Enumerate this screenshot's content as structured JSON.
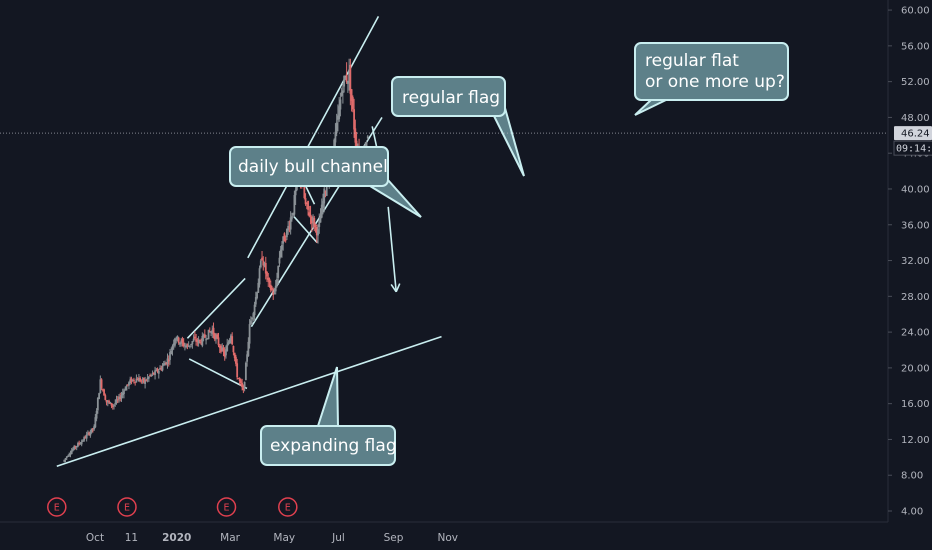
{
  "chart_data": {
    "type": "candlestick",
    "title": "",
    "x": [
      "2019-08-26",
      "2019-09-02",
      "2019-09-09",
      "2019-09-16",
      "2019-09-23",
      "2019-09-30",
      "2019-10-07",
      "2019-10-14",
      "2019-10-21",
      "2019-10-28",
      "2019-11-04",
      "2019-11-11",
      "2019-11-18",
      "2019-11-25",
      "2019-12-02",
      "2019-12-09",
      "2019-12-16",
      "2019-12-23",
      "2019-12-30",
      "2020-01-06",
      "2020-01-13",
      "2020-01-20",
      "2020-01-27",
      "2020-02-03",
      "2020-02-10",
      "2020-02-17",
      "2020-02-24",
      "2020-03-02",
      "2020-03-09",
      "2020-03-16",
      "2020-03-23",
      "2020-03-30",
      "2020-04-06",
      "2020-04-13",
      "2020-04-20",
      "2020-04-27",
      "2020-05-04",
      "2020-05-11",
      "2020-05-18",
      "2020-05-25",
      "2020-06-01",
      "2020-06-08",
      "2020-06-15",
      "2020-06-22",
      "2020-06-29",
      "2020-07-06",
      "2020-07-13",
      "2020-07-20",
      "2020-07-27",
      "2020-08-03"
    ],
    "close": [
      9.5,
      10.5,
      11.2,
      11.8,
      12.6,
      13.3,
      18.5,
      16.2,
      15.8,
      16.5,
      17.8,
      18.6,
      18.8,
      18.4,
      19.1,
      19.5,
      20.2,
      21.1,
      23.5,
      22.8,
      22.4,
      23.1,
      22.9,
      23.6,
      24.2,
      22.7,
      21.4,
      23.9,
      19.2,
      17.3,
      24.6,
      27.9,
      32.5,
      29.4,
      28.1,
      33.5,
      35.2,
      37.8,
      42.3,
      38.1,
      36.7,
      35.1,
      39.4,
      42.6,
      46.8,
      51.9,
      52.8,
      45.6,
      42.3,
      46.24
    ],
    "yaxis": {
      "ticks": [
        4,
        8,
        12,
        16,
        20,
        24,
        28,
        32,
        36,
        40,
        44,
        48,
        52,
        56,
        60
      ],
      "tick_labels": [
        "4.00",
        "8.00",
        "12.00",
        "16.00",
        "20.00",
        "24.00",
        "28.00",
        "32.00",
        "36.00",
        "40.00",
        "44.00",
        "48.00",
        "52.00",
        "56.00",
        "60.00"
      ],
      "range": [
        2,
        61
      ],
      "current_price": "46.24",
      "countdown": "09:14:29"
    },
    "xaxis": {
      "labels": [
        {
          "text": "Oct",
          "date": "2019-10-01",
          "bold": false
        },
        {
          "text": "11",
          "date": "2019-11-11",
          "bold": false
        },
        {
          "text": "2020",
          "date": "2020-01-01",
          "bold": true
        },
        {
          "text": "Mar",
          "date": "2020-03-01",
          "bold": false
        },
        {
          "text": "May",
          "date": "2020-05-01",
          "bold": false
        },
        {
          "text": "Jul",
          "date": "2020-07-01",
          "bold": false
        },
        {
          "text": "Sep",
          "date": "2020-09-01",
          "bold": false
        },
        {
          "text": "Nov",
          "date": "2020-11-01",
          "bold": false
        }
      ]
    },
    "earnings_markers": [
      {
        "label": "E",
        "date": "2019-08-19"
      },
      {
        "label": "E",
        "date": "2019-11-06"
      },
      {
        "label": "E",
        "date": "2020-02-26"
      },
      {
        "label": "E",
        "date": "2020-05-05"
      }
    ],
    "trendlines": [
      {
        "name": "long-term support",
        "points": [
          [
            "2019-08-19",
            9.0
          ],
          [
            "2020-10-25",
            23.5
          ]
        ]
      },
      {
        "name": "expanding flag upper",
        "points": [
          [
            "2020-01-13",
            23.3
          ],
          [
            "2020-03-18",
            30.0
          ]
        ]
      },
      {
        "name": "expanding flag lower",
        "points": [
          [
            "2020-01-15",
            21.0
          ],
          [
            "2020-03-20",
            17.7
          ]
        ]
      },
      {
        "name": "bull channel upper",
        "points": [
          [
            "2020-03-21",
            32.3
          ],
          [
            "2020-08-15",
            59.3
          ]
        ]
      },
      {
        "name": "bull channel lower",
        "points": [
          [
            "2020-03-25",
            24.6
          ],
          [
            "2020-08-19",
            48.0
          ]
        ]
      },
      {
        "name": "regular flag upper",
        "points": [
          [
            "2020-05-18",
            41.8
          ],
          [
            "2020-06-04",
            38.3
          ]
        ]
      },
      {
        "name": "regular flag lower",
        "points": [
          [
            "2020-05-12",
            36.9
          ],
          [
            "2020-06-07",
            34.0
          ]
        ]
      }
    ],
    "projection_arrows": [
      {
        "from": [
          "2020-08-08",
          47.0
        ],
        "to": [
          "2020-08-21",
          41.0
        ]
      },
      {
        "from": [
          "2020-08-26",
          38.0
        ],
        "to": [
          "2020-09-04",
          28.5
        ]
      }
    ],
    "annotations": [
      {
        "text": "expanding flag",
        "lines": [
          "expanding flag"
        ]
      },
      {
        "text": "daily bull channel",
        "lines": [
          "daily bull channel"
        ]
      },
      {
        "text": "regular flag",
        "lines": [
          "regular flag"
        ]
      },
      {
        "text": "regular flat or one more up?",
        "lines": [
          "regular flat",
          "or one more up?"
        ]
      }
    ],
    "grid": false,
    "colors": {
      "background": "#131722",
      "up": "#8a9196",
      "down": "#e06b6b",
      "drawing": "#c9eef0",
      "annotation_fill": "#5d8089",
      "axis_text": "#b2b5be",
      "earnings": "#e0404f"
    }
  }
}
